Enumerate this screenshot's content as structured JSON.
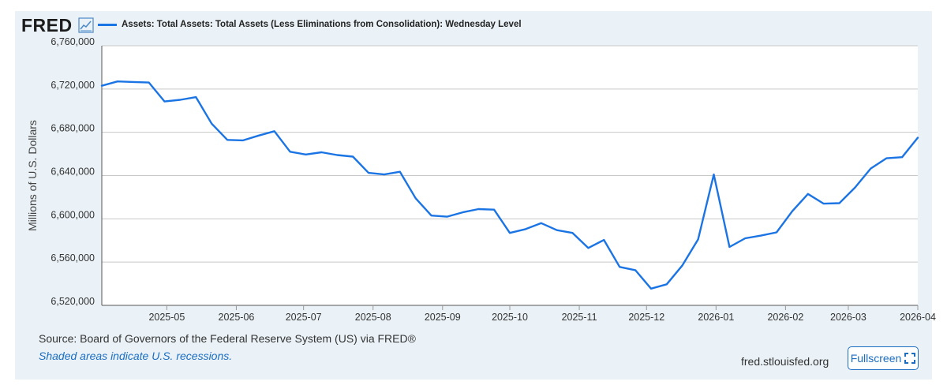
{
  "header": {
    "logo_text": "FRED",
    "logo_icon": "line-chart-icon",
    "series_title": "Assets: Total Assets: Total Assets (Less Eliminations from Consolidation): Wednesday Level"
  },
  "footer": {
    "source": "Source: Board of Governors of the Federal Reserve System (US) via FRED®",
    "recession_note": "Shaded areas indicate U.S. recessions.",
    "site": "fred.stlouisfed.org",
    "fullscreen_label": "Fullscreen",
    "fullscreen_icon": "expand-icon"
  },
  "colors": {
    "line": "#1b74e4",
    "panel_bg": "#eaf2f7",
    "plot_bg": "#ffffff",
    "grid": "#c8c8c8",
    "link": "#1b6dc1"
  },
  "chart_data": {
    "type": "line",
    "title": "Assets: Total Assets: Total Assets (Less Eliminations from Consolidation): Wednesday Level",
    "xlabel": "",
    "ylabel": "Millions of U.S. Dollars",
    "ylim": [
      6520000,
      6760000
    ],
    "yticks": [
      6520000,
      6560000,
      6600000,
      6640000,
      6680000,
      6720000,
      6760000
    ],
    "ytick_labels": [
      "6,520,000",
      "6,560,000",
      "6,600,000",
      "6,640,000",
      "6,680,000",
      "6,720,000",
      "6,760,000"
    ],
    "x_start": "2025-04-02",
    "x_end": "2026-04-01",
    "xticks": [
      "2025-05-01",
      "2025-06-01",
      "2025-07-01",
      "2025-08-01",
      "2025-09-01",
      "2025-10-01",
      "2025-11-01",
      "2025-12-01",
      "2026-01-01",
      "2026-02-01",
      "2026-03-01",
      "2026-04-01"
    ],
    "xtick_labels": [
      "2025-05",
      "2025-06",
      "2025-07",
      "2025-08",
      "2025-09",
      "2025-10",
      "2025-11",
      "2025-12",
      "2026-01",
      "2026-02",
      "2026-03",
      "2026-04"
    ],
    "grid": true,
    "series": [
      {
        "name": "Assets: Total Assets: Total Assets (Less Eliminations from Consolidation): Wednesday Level",
        "x": [
          "2025-04-02",
          "2025-04-09",
          "2025-04-16",
          "2025-04-23",
          "2025-04-30",
          "2025-05-07",
          "2025-05-14",
          "2025-05-21",
          "2025-05-28",
          "2025-06-04",
          "2025-06-11",
          "2025-06-18",
          "2025-06-25",
          "2025-07-02",
          "2025-07-09",
          "2025-07-16",
          "2025-07-23",
          "2025-07-30",
          "2025-08-06",
          "2025-08-13",
          "2025-08-20",
          "2025-08-27",
          "2025-09-03",
          "2025-09-10",
          "2025-09-17",
          "2025-09-24",
          "2025-10-01",
          "2025-10-08",
          "2025-10-15",
          "2025-10-22",
          "2025-10-29",
          "2025-11-05",
          "2025-11-12",
          "2025-11-19",
          "2025-11-26",
          "2025-12-03",
          "2025-12-10",
          "2025-12-17",
          "2025-12-24",
          "2025-12-31",
          "2026-01-07",
          "2026-01-14",
          "2026-01-21",
          "2026-01-28",
          "2026-02-04",
          "2026-02-11",
          "2026-02-18",
          "2026-02-25",
          "2026-03-04",
          "2026-03-11",
          "2026-03-18",
          "2026-03-25",
          "2026-04-01"
        ],
        "values": [
          6723000,
          6727000,
          6726500,
          6726000,
          6708500,
          6710000,
          6712500,
          6688000,
          6673000,
          6672500,
          6677000,
          6681000,
          6662000,
          6659500,
          6661500,
          6659000,
          6657500,
          6642500,
          6641000,
          6643500,
          6619000,
          6603000,
          6602000,
          6606000,
          6609000,
          6608500,
          6587000,
          6590500,
          6596000,
          6589500,
          6587000,
          6573000,
          6580500,
          6555500,
          6552500,
          6535500,
          6539500,
          6557000,
          6581000,
          6641000,
          6574000,
          6582000,
          6584500,
          6587500,
          6607000,
          6623000,
          6614000,
          6614500,
          6629000,
          6646500,
          6656000,
          6657000,
          6675000
        ]
      }
    ]
  }
}
